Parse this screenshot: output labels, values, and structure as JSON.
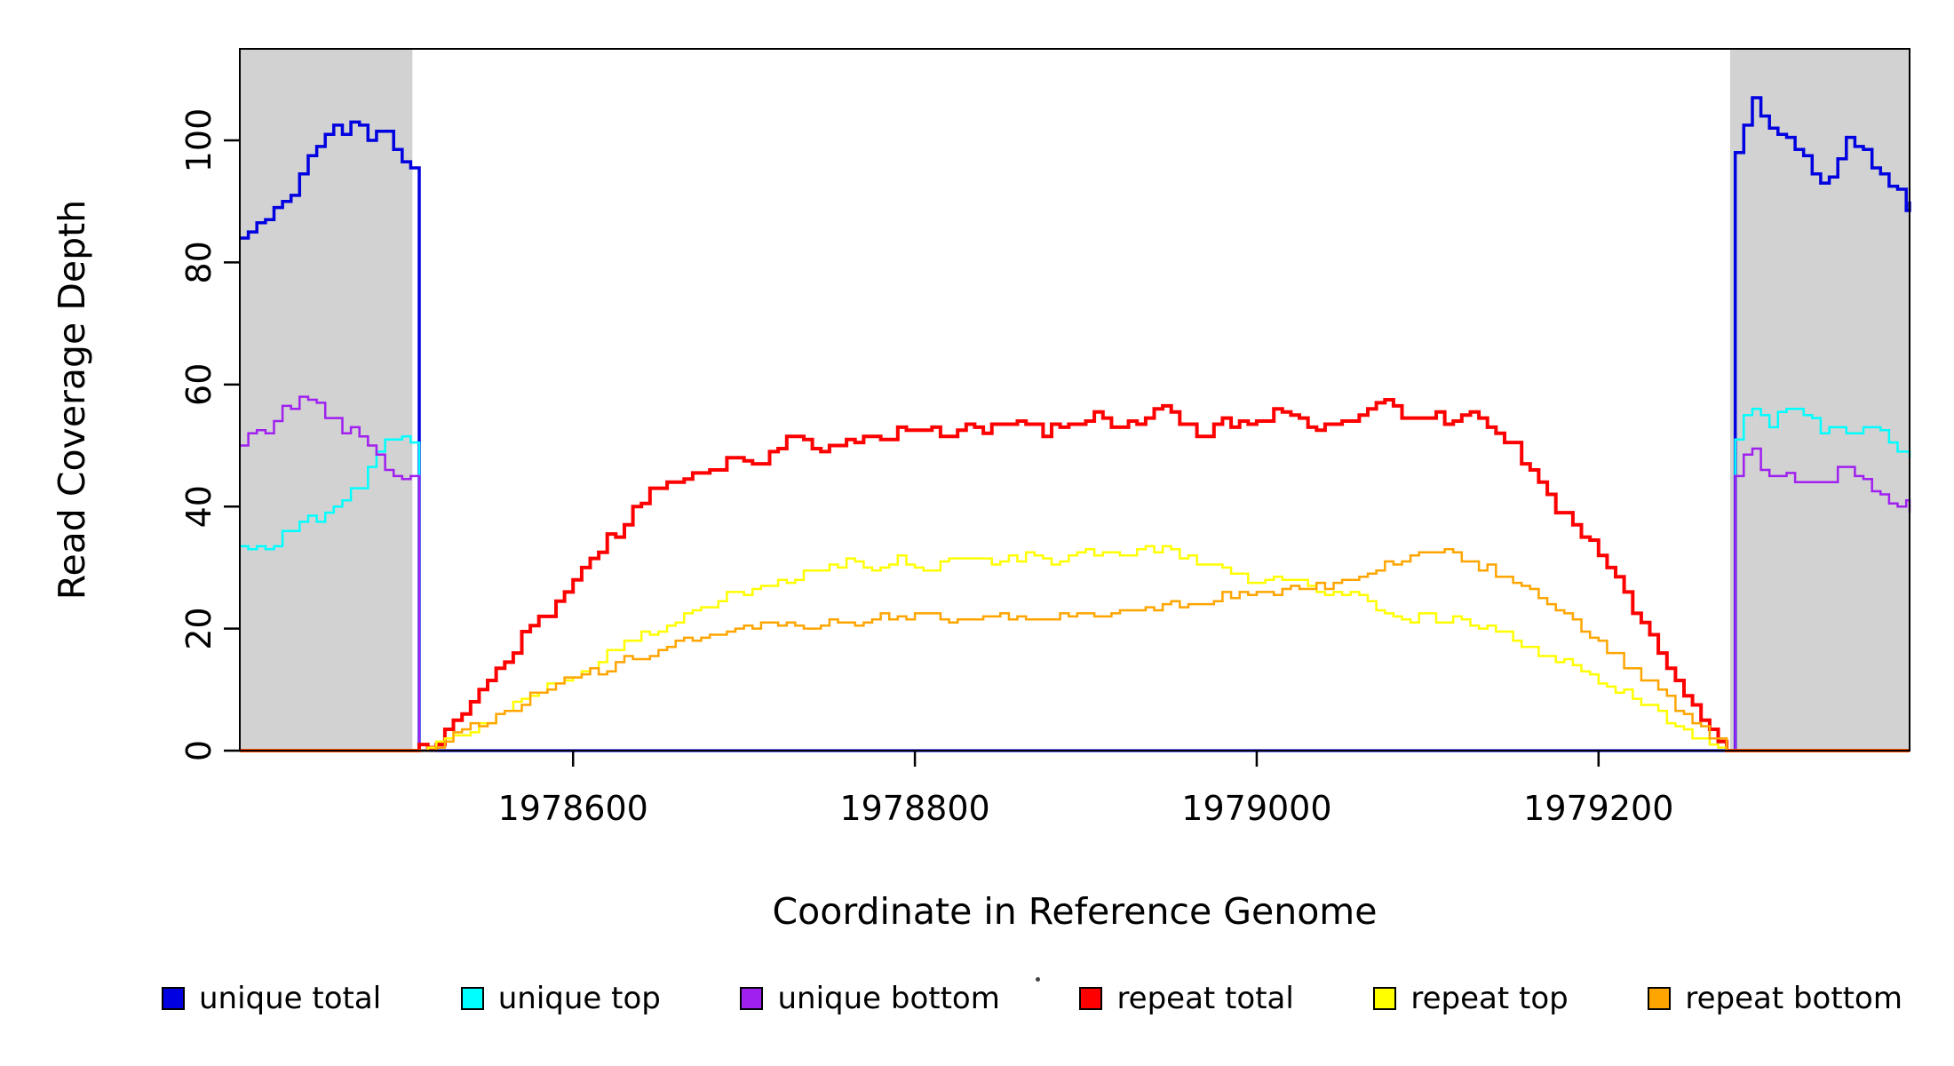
{
  "chart_data": {
    "type": "line",
    "title": "",
    "xlabel": "Coordinate in Reference Genome",
    "ylabel": "Read Coverage Depth",
    "xlim": [
      1978405,
      1979382
    ],
    "ylim": [
      0,
      115
    ],
    "x_ticks": [
      1978600,
      1978800,
      1979000,
      1979200
    ],
    "y_ticks": [
      0,
      20,
      40,
      60,
      80,
      100
    ],
    "grid": false,
    "legend_position": "bottom",
    "noise_step": 5,
    "shaded_regions": [
      {
        "x0": 1978405,
        "x1": 1978506,
        "color": "#D2D2D2"
      },
      {
        "x0": 1979277,
        "x1": 1979382,
        "color": "#D2D2D2"
      }
    ],
    "series": [
      {
        "name": "unique total",
        "color": "#0000E0",
        "width": 3.5,
        "noise": 1.3,
        "seed": 11,
        "points": [
          [
            1978405,
            84
          ],
          [
            1978415,
            86
          ],
          [
            1978425,
            88
          ],
          [
            1978435,
            92
          ],
          [
            1978445,
            97
          ],
          [
            1978452,
            100
          ],
          [
            1978458,
            102
          ],
          [
            1978465,
            101
          ],
          [
            1978472,
            103
          ],
          [
            1978480,
            101
          ],
          [
            1978488,
            103
          ],
          [
            1978495,
            99
          ],
          [
            1978502,
            96
          ],
          [
            1978506,
            95
          ],
          [
            1978507,
            0
          ],
          [
            1979276,
            0
          ],
          [
            1979277,
            97
          ],
          [
            1979282,
            100
          ],
          [
            1979287,
            104
          ],
          [
            1979291,
            108
          ],
          [
            1979296,
            103
          ],
          [
            1979302,
            100
          ],
          [
            1979310,
            100
          ],
          [
            1979318,
            98
          ],
          [
            1979326,
            95
          ],
          [
            1979334,
            93
          ],
          [
            1979340,
            96
          ],
          [
            1979346,
            102
          ],
          [
            1979352,
            99
          ],
          [
            1979360,
            96
          ],
          [
            1979368,
            93
          ],
          [
            1979375,
            91
          ],
          [
            1979382,
            89
          ]
        ]
      },
      {
        "name": "unique top",
        "color": "#00FFFF",
        "width": 2.5,
        "noise": 1.3,
        "seed": 22,
        "points": [
          [
            1978405,
            33
          ],
          [
            1978415,
            34
          ],
          [
            1978425,
            34
          ],
          [
            1978435,
            36
          ],
          [
            1978445,
            38
          ],
          [
            1978455,
            40
          ],
          [
            1978465,
            42
          ],
          [
            1978475,
            44
          ],
          [
            1978482,
            47
          ],
          [
            1978488,
            52
          ],
          [
            1978493,
            49
          ],
          [
            1978498,
            52
          ],
          [
            1978503,
            50
          ],
          [
            1978506,
            50
          ],
          [
            1978507,
            0
          ],
          [
            1979276,
            0
          ],
          [
            1979277,
            50
          ],
          [
            1979282,
            53
          ],
          [
            1979288,
            56
          ],
          [
            1979294,
            57
          ],
          [
            1979300,
            54
          ],
          [
            1979308,
            56
          ],
          [
            1979316,
            57
          ],
          [
            1979324,
            54
          ],
          [
            1979332,
            53
          ],
          [
            1979340,
            54
          ],
          [
            1979348,
            52
          ],
          [
            1979356,
            54
          ],
          [
            1979364,
            53
          ],
          [
            1979372,
            51
          ],
          [
            1979382,
            49
          ]
        ]
      },
      {
        "name": "unique bottom",
        "color": "#A020F0",
        "width": 2.5,
        "noise": 1.2,
        "seed": 33,
        "points": [
          [
            1978405,
            50
          ],
          [
            1978412,
            52
          ],
          [
            1978420,
            53
          ],
          [
            1978428,
            55
          ],
          [
            1978436,
            57
          ],
          [
            1978442,
            58
          ],
          [
            1978448,
            56
          ],
          [
            1978455,
            55
          ],
          [
            1978462,
            53
          ],
          [
            1978470,
            52
          ],
          [
            1978478,
            50
          ],
          [
            1978486,
            48
          ],
          [
            1978494,
            46
          ],
          [
            1978500,
            45
          ],
          [
            1978506,
            44
          ],
          [
            1978507,
            0
          ],
          [
            1979276,
            0
          ],
          [
            1979277,
            44
          ],
          [
            1979283,
            47
          ],
          [
            1979289,
            50
          ],
          [
            1979295,
            46
          ],
          [
            1979302,
            44
          ],
          [
            1979310,
            45
          ],
          [
            1979318,
            44
          ],
          [
            1979326,
            43
          ],
          [
            1979334,
            44
          ],
          [
            1979342,
            46
          ],
          [
            1979350,
            45
          ],
          [
            1979358,
            44
          ],
          [
            1979366,
            42
          ],
          [
            1979374,
            40
          ],
          [
            1979382,
            40
          ]
        ]
      },
      {
        "name": "repeat total",
        "color": "#FF0000",
        "width": 4,
        "noise": 1.0,
        "seed": 44,
        "points": [
          [
            1978405,
            0
          ],
          [
            1978509,
            0
          ],
          [
            1978515,
            1
          ],
          [
            1978525,
            3
          ],
          [
            1978535,
            6
          ],
          [
            1978545,
            10
          ],
          [
            1978555,
            13
          ],
          [
            1978565,
            17
          ],
          [
            1978575,
            20
          ],
          [
            1978585,
            23
          ],
          [
            1978595,
            26
          ],
          [
            1978605,
            30
          ],
          [
            1978615,
            33
          ],
          [
            1978625,
            36
          ],
          [
            1978635,
            39
          ],
          [
            1978645,
            42
          ],
          [
            1978655,
            44
          ],
          [
            1978665,
            45
          ],
          [
            1978675,
            46
          ],
          [
            1978685,
            47
          ],
          [
            1978695,
            48
          ],
          [
            1978705,
            47
          ],
          [
            1978715,
            49
          ],
          [
            1978725,
            51
          ],
          [
            1978735,
            50
          ],
          [
            1978745,
            49
          ],
          [
            1978755,
            50
          ],
          [
            1978765,
            51
          ],
          [
            1978775,
            51
          ],
          [
            1978785,
            52
          ],
          [
            1978795,
            53
          ],
          [
            1978805,
            53
          ],
          [
            1978815,
            52
          ],
          [
            1978825,
            53
          ],
          [
            1978835,
            52
          ],
          [
            1978845,
            53
          ],
          [
            1978855,
            54
          ],
          [
            1978865,
            53
          ],
          [
            1978875,
            52
          ],
          [
            1978885,
            53
          ],
          [
            1978895,
            54
          ],
          [
            1978905,
            55
          ],
          [
            1978915,
            54
          ],
          [
            1978925,
            53
          ],
          [
            1978935,
            55
          ],
          [
            1978945,
            56
          ],
          [
            1978955,
            54
          ],
          [
            1978965,
            52
          ],
          [
            1978975,
            53
          ],
          [
            1978985,
            54
          ],
          [
            1978995,
            53
          ],
          [
            1979005,
            55
          ],
          [
            1979015,
            56
          ],
          [
            1979025,
            54
          ],
          [
            1979035,
            53
          ],
          [
            1979045,
            54
          ],
          [
            1979055,
            55
          ],
          [
            1979065,
            56
          ],
          [
            1979075,
            57
          ],
          [
            1979085,
            55
          ],
          [
            1979095,
            54
          ],
          [
            1979105,
            55
          ],
          [
            1979115,
            54
          ],
          [
            1979125,
            55
          ],
          [
            1979135,
            53
          ],
          [
            1979145,
            51
          ],
          [
            1979155,
            48
          ],
          [
            1979165,
            44
          ],
          [
            1979175,
            40
          ],
          [
            1979185,
            37
          ],
          [
            1979195,
            34
          ],
          [
            1979205,
            30
          ],
          [
            1979215,
            26
          ],
          [
            1979225,
            21
          ],
          [
            1979235,
            16
          ],
          [
            1979245,
            11
          ],
          [
            1979255,
            7
          ],
          [
            1979263,
            4
          ],
          [
            1979270,
            1
          ],
          [
            1979274,
            0
          ],
          [
            1979382,
            0
          ]
        ]
      },
      {
        "name": "repeat top",
        "color": "#FFFF00",
        "width": 2.5,
        "noise": 0.8,
        "seed": 55,
        "points": [
          [
            1978405,
            0
          ],
          [
            1978510,
            0
          ],
          [
            1978520,
            1
          ],
          [
            1978535,
            3
          ],
          [
            1978550,
            5
          ],
          [
            1978565,
            8
          ],
          [
            1978580,
            10
          ],
          [
            1978595,
            12
          ],
          [
            1978610,
            14
          ],
          [
            1978625,
            17
          ],
          [
            1978640,
            19
          ],
          [
            1978655,
            21
          ],
          [
            1978670,
            23
          ],
          [
            1978685,
            25
          ],
          [
            1978700,
            26
          ],
          [
            1978715,
            27
          ],
          [
            1978730,
            28
          ],
          [
            1978745,
            30
          ],
          [
            1978760,
            31
          ],
          [
            1978775,
            30
          ],
          [
            1978790,
            31
          ],
          [
            1978805,
            30
          ],
          [
            1978820,
            31
          ],
          [
            1978835,
            32
          ],
          [
            1978850,
            31
          ],
          [
            1978865,
            32
          ],
          [
            1978880,
            31
          ],
          [
            1978895,
            32
          ],
          [
            1978910,
            33
          ],
          [
            1978925,
            32
          ],
          [
            1978940,
            33
          ],
          [
            1978955,
            32
          ],
          [
            1978970,
            31
          ],
          [
            1978985,
            29
          ],
          [
            1979000,
            28
          ],
          [
            1979015,
            28
          ],
          [
            1979030,
            27
          ],
          [
            1979045,
            26
          ],
          [
            1979060,
            25
          ],
          [
            1979075,
            23
          ],
          [
            1979090,
            22
          ],
          [
            1979105,
            22
          ],
          [
            1979120,
            21
          ],
          [
            1979135,
            20
          ],
          [
            1979150,
            18
          ],
          [
            1979165,
            16
          ],
          [
            1979180,
            14
          ],
          [
            1979195,
            12
          ],
          [
            1979210,
            10
          ],
          [
            1979225,
            8
          ],
          [
            1979240,
            5
          ],
          [
            1979255,
            3
          ],
          [
            1979268,
            1
          ],
          [
            1979274,
            0
          ],
          [
            1979382,
            0
          ]
        ]
      },
      {
        "name": "repeat bottom",
        "color": "#FFA500",
        "width": 2.5,
        "noise": 0.7,
        "seed": 66,
        "points": [
          [
            1978405,
            0
          ],
          [
            1978512,
            0
          ],
          [
            1978525,
            2
          ],
          [
            1978540,
            4
          ],
          [
            1978555,
            6
          ],
          [
            1978570,
            8
          ],
          [
            1978585,
            10
          ],
          [
            1978600,
            12
          ],
          [
            1978615,
            13
          ],
          [
            1978630,
            15
          ],
          [
            1978645,
            16
          ],
          [
            1978660,
            18
          ],
          [
            1978675,
            19
          ],
          [
            1978690,
            20
          ],
          [
            1978705,
            20
          ],
          [
            1978720,
            21
          ],
          [
            1978735,
            20
          ],
          [
            1978750,
            21
          ],
          [
            1978765,
            21
          ],
          [
            1978780,
            22
          ],
          [
            1978795,
            22
          ],
          [
            1978810,
            22
          ],
          [
            1978825,
            21
          ],
          [
            1978840,
            22
          ],
          [
            1978855,
            22
          ],
          [
            1978870,
            22
          ],
          [
            1978885,
            22
          ],
          [
            1978900,
            23
          ],
          [
            1978915,
            22
          ],
          [
            1978930,
            23
          ],
          [
            1978945,
            24
          ],
          [
            1978960,
            24
          ],
          [
            1978975,
            25
          ],
          [
            1978990,
            26
          ],
          [
            1979005,
            26
          ],
          [
            1979020,
            27
          ],
          [
            1979035,
            27
          ],
          [
            1979050,
            28
          ],
          [
            1979065,
            29
          ],
          [
            1979080,
            31
          ],
          [
            1979095,
            32
          ],
          [
            1979110,
            33
          ],
          [
            1979125,
            31
          ],
          [
            1979140,
            29
          ],
          [
            1979155,
            27
          ],
          [
            1979170,
            24
          ],
          [
            1979185,
            21
          ],
          [
            1979200,
            18
          ],
          [
            1979215,
            14
          ],
          [
            1979230,
            11
          ],
          [
            1979245,
            7
          ],
          [
            1979258,
            4
          ],
          [
            1979268,
            2
          ],
          [
            1979274,
            0
          ],
          [
            1979382,
            0
          ]
        ]
      }
    ]
  }
}
